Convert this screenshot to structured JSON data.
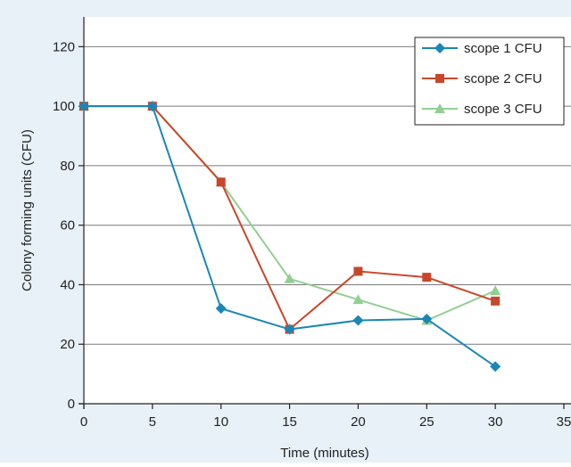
{
  "chart_data": {
    "type": "line",
    "title": "",
    "xlabel": "Time (minutes)",
    "ylabel": "Colony forming units (CFU)",
    "xlim": [
      0,
      35
    ],
    "ylim": [
      0,
      130
    ],
    "xticks": [
      0,
      5,
      10,
      15,
      20,
      25,
      30,
      35
    ],
    "yticks": [
      0,
      20,
      40,
      60,
      80,
      100,
      120
    ],
    "grid": "horizontal",
    "legend_position": "top-right",
    "x": [
      0,
      5,
      10,
      15,
      20,
      25,
      30
    ],
    "series": [
      {
        "name": "scope 1 CFU",
        "values": [
          100,
          100,
          32,
          25,
          28,
          28.5,
          12.5
        ],
        "color": "#1b87b5",
        "marker": "diamond"
      },
      {
        "name": "scope 2 CFU",
        "values": [
          100,
          100,
          74.5,
          25,
          44.5,
          42.5,
          34.5
        ],
        "color": "#c8472a",
        "marker": "square"
      },
      {
        "name": "scope 3 CFU",
        "values": [
          100,
          100,
          74.5,
          42,
          35,
          28,
          38
        ],
        "color": "#92cf92",
        "marker": "triangle"
      }
    ],
    "colors": {
      "background": "#e8f1f8",
      "plot_area": "#ffffff",
      "grid": "#7a7a7a",
      "axis": "#222222",
      "text": "#222222"
    }
  }
}
